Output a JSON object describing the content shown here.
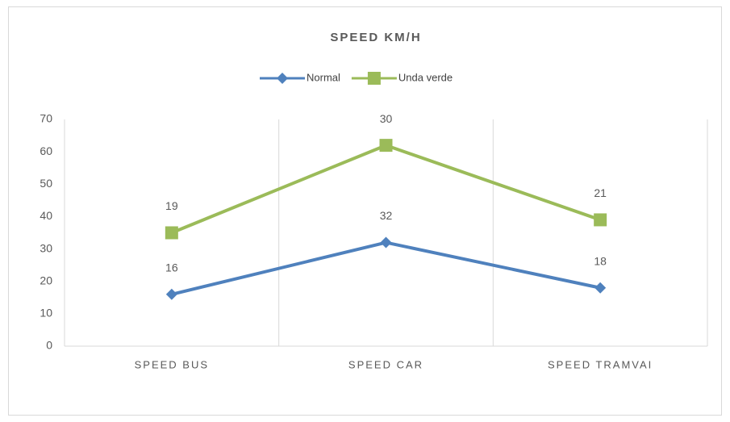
{
  "chart_data": {
    "type": "line",
    "title": "SPEED KM/H",
    "stacked": true,
    "categories": [
      "SPEED BUS",
      "SPEED CAR",
      "SPEED TRAMVAI"
    ],
    "series": [
      {
        "name": "Normal",
        "color": "#4f81bd",
        "marker": "diamond",
        "values": [
          16,
          32,
          18
        ]
      },
      {
        "name": "Unda verde",
        "color": "#9bbb59",
        "marker": "square",
        "values": [
          19,
          30,
          21
        ]
      }
    ],
    "ylim": [
      0,
      70
    ],
    "yticks": [
      0,
      10,
      20,
      30,
      40,
      50,
      60,
      70
    ],
    "grid": "vertical",
    "legend": "top"
  }
}
